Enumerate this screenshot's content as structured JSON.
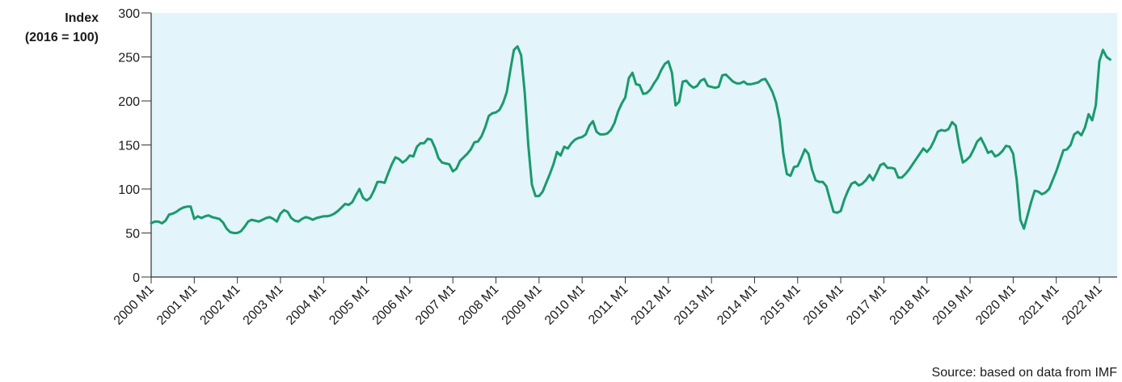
{
  "chart_data": {
    "type": "line",
    "y_label": [
      "Index",
      "(2016 = 100)"
    ],
    "source": "Source: based on data from IMF",
    "ylim": [
      0,
      300
    ],
    "yticks": [
      0,
      50,
      100,
      150,
      200,
      250,
      300
    ],
    "color": "#1a9a6c",
    "background": "#e3f4fb",
    "categories": [
      "2000 M1",
      null,
      null,
      null,
      null,
      null,
      null,
      null,
      null,
      null,
      null,
      null,
      "2001 M1",
      null,
      null,
      null,
      null,
      null,
      null,
      null,
      null,
      null,
      null,
      null,
      "2002 M1",
      null,
      null,
      null,
      null,
      null,
      null,
      null,
      null,
      null,
      null,
      null,
      "2003 M1",
      null,
      null,
      null,
      null,
      null,
      null,
      null,
      null,
      null,
      null,
      null,
      "2004 M1",
      null,
      null,
      null,
      null,
      null,
      null,
      null,
      null,
      null,
      null,
      null,
      "2005 M1",
      null,
      null,
      null,
      null,
      null,
      null,
      null,
      null,
      null,
      null,
      null,
      "2006 M1",
      null,
      null,
      null,
      null,
      null,
      null,
      null,
      null,
      null,
      null,
      null,
      "2007 M1",
      null,
      null,
      null,
      null,
      null,
      null,
      null,
      null,
      null,
      null,
      null,
      "2008 M1",
      null,
      null,
      null,
      null,
      null,
      null,
      null,
      null,
      null,
      null,
      null,
      "2009 M1",
      null,
      null,
      null,
      null,
      null,
      null,
      null,
      null,
      null,
      null,
      null,
      "2010 M1",
      null,
      null,
      null,
      null,
      null,
      null,
      null,
      null,
      null,
      null,
      null,
      "2011 M1",
      null,
      null,
      null,
      null,
      null,
      null,
      null,
      null,
      null,
      null,
      null,
      "2012 M1",
      null,
      null,
      null,
      null,
      null,
      null,
      null,
      null,
      null,
      null,
      null,
      "2013 M1",
      null,
      null,
      null,
      null,
      null,
      null,
      null,
      null,
      null,
      null,
      null,
      "2014 M1",
      null,
      null,
      null,
      null,
      null,
      null,
      null,
      null,
      null,
      null,
      null,
      "2015 M1",
      null,
      null,
      null,
      null,
      null,
      null,
      null,
      null,
      null,
      null,
      null,
      "2016 M1",
      null,
      null,
      null,
      null,
      null,
      null,
      null,
      null,
      null,
      null,
      null,
      "2017 M1",
      null,
      null,
      null,
      null,
      null,
      null,
      null,
      null,
      null,
      null,
      null,
      "2018 M1",
      null,
      null,
      null,
      null,
      null,
      null,
      null,
      null,
      null,
      null,
      null,
      "2019 M1",
      null,
      null,
      null,
      null,
      null,
      null,
      null,
      null,
      null,
      null,
      null,
      "2020 M1",
      null,
      null,
      null,
      null,
      null,
      null,
      null,
      null,
      null,
      null,
      null,
      "2021 M1",
      null,
      null,
      null,
      null,
      null,
      null,
      null,
      null,
      null,
      null,
      null,
      "2022 M1",
      null,
      null,
      null
    ],
    "values": [
      61,
      63,
      63,
      61,
      64,
      71,
      72,
      74,
      77,
      79,
      80,
      80,
      66,
      69,
      67,
      69,
      70,
      68,
      67,
      66,
      62,
      55,
      51,
      50,
      50,
      52,
      57,
      63,
      65,
      64,
      63,
      65,
      67,
      68,
      66,
      63,
      72,
      76,
      74,
      67,
      64,
      63,
      66,
      68,
      67,
      65,
      67,
      68,
      69,
      69,
      70,
      72,
      75,
      79,
      83,
      82,
      85,
      93,
      100,
      90,
      87,
      90,
      98,
      108,
      108,
      107,
      118,
      128,
      136,
      134,
      130,
      133,
      138,
      137,
      148,
      152,
      152,
      157,
      156,
      147,
      135,
      130,
      129,
      128,
      120,
      123,
      132,
      136,
      140,
      145,
      153,
      154,
      160,
      170,
      183,
      186,
      187,
      190,
      198,
      210,
      235,
      258,
      262,
      252,
      210,
      150,
      105,
      92,
      92,
      97,
      107,
      117,
      128,
      142,
      138,
      148,
      146,
      152,
      156,
      158,
      159,
      162,
      172,
      177,
      165,
      162,
      162,
      163,
      167,
      175,
      188,
      197,
      204,
      226,
      232,
      219,
      218,
      208,
      209,
      213,
      220,
      226,
      235,
      242,
      245,
      232,
      195,
      199,
      222,
      223,
      218,
      215,
      217,
      223,
      225,
      217,
      216,
      215,
      216,
      229,
      230,
      226,
      222,
      220,
      220,
      222,
      219,
      219,
      220,
      221,
      224,
      225,
      218,
      210,
      198,
      178,
      140,
      117,
      115,
      125,
      126,
      135,
      145,
      140,
      122,
      110,
      108,
      108,
      103,
      88,
      74,
      73,
      75,
      88,
      98,
      106,
      108,
      104,
      106,
      110,
      116,
      110,
      118,
      127,
      129,
      124,
      124,
      123,
      113,
      113,
      117,
      122,
      128,
      134,
      140,
      146,
      142,
      147,
      155,
      165,
      167,
      166,
      168,
      176,
      172,
      148,
      130,
      133,
      137,
      145,
      154,
      158,
      150,
      141,
      143,
      137,
      139,
      143,
      149,
      148,
      140,
      110,
      65,
      55,
      70,
      85,
      98,
      97,
      94,
      96,
      100,
      110,
      120,
      132,
      144,
      145,
      150,
      162,
      165,
      161,
      170,
      185,
      178,
      195,
      245,
      258,
      250,
      247
    ]
  }
}
